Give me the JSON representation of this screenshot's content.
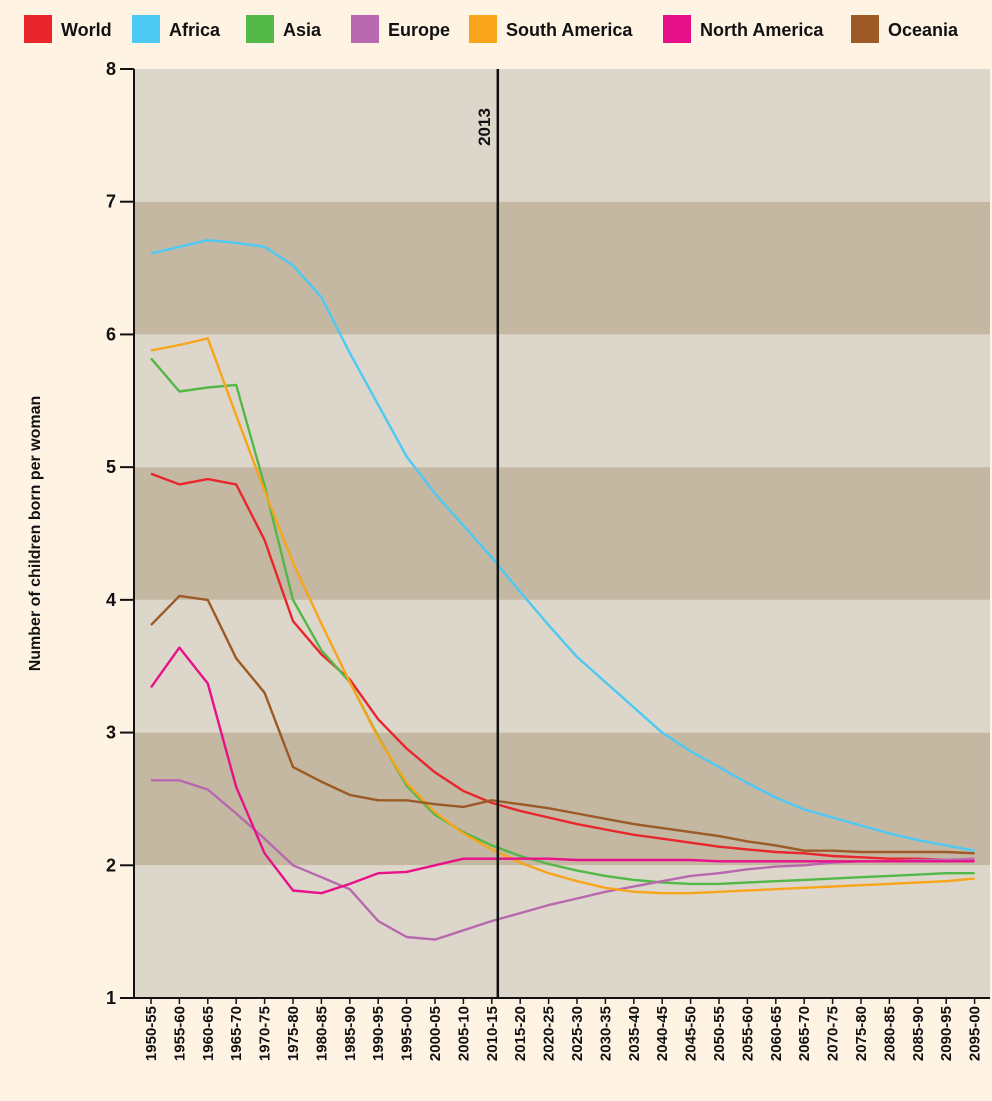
{
  "chart_data": {
    "type": "line",
    "title": "",
    "xlabel": "",
    "ylabel": "Number of children born per woman",
    "ylim": [
      1,
      8
    ],
    "yticks": [
      "1",
      "2",
      "3",
      "4",
      "5",
      "6",
      "7",
      "8"
    ],
    "grid": "alternating horizontal bands",
    "legend_position": "top",
    "categories": [
      "1950-55",
      "1955-60",
      "1960-65",
      "1965-70",
      "1970-75",
      "1975-80",
      "1980-85",
      "1985-90",
      "1990-95",
      "1995-00",
      "2000-05",
      "2005-10",
      "2010-15",
      "2015-20",
      "2020-25",
      "2025-30",
      "2030-35",
      "2035-40",
      "2040-45",
      "2045-50",
      "2050-55",
      "2055-60",
      "2060-65",
      "2065-70",
      "2070-75",
      "2075-80",
      "2080-85",
      "2085-90",
      "2090-95",
      "2095-00"
    ],
    "annotation": {
      "label": "2013",
      "at_category": "2010-15"
    },
    "series": [
      {
        "name": "World",
        "color": "#e8262b",
        "values": [
          4.95,
          4.87,
          4.91,
          4.87,
          4.45,
          3.84,
          3.59,
          3.4,
          3.1,
          2.88,
          2.7,
          2.56,
          2.47,
          2.41,
          2.36,
          2.31,
          2.27,
          2.23,
          2.2,
          2.17,
          2.14,
          2.12,
          2.1,
          2.09,
          2.07,
          2.06,
          2.05,
          2.05,
          2.04,
          2.04
        ]
      },
      {
        "name": "Africa",
        "color": "#4dc9f3",
        "values": [
          6.61,
          6.66,
          6.71,
          6.69,
          6.66,
          6.52,
          6.28,
          5.86,
          5.47,
          5.08,
          4.8,
          4.56,
          4.32,
          4.06,
          3.81,
          3.57,
          3.38,
          3.19,
          3.0,
          2.86,
          2.74,
          2.62,
          2.51,
          2.42,
          2.36,
          2.3,
          2.24,
          2.19,
          2.15,
          2.11
        ]
      },
      {
        "name": "Asia",
        "color": "#53b848",
        "values": [
          5.82,
          5.57,
          5.6,
          5.62,
          4.86,
          4.0,
          3.62,
          3.38,
          2.97,
          2.6,
          2.38,
          2.25,
          2.15,
          2.07,
          2.01,
          1.96,
          1.92,
          1.89,
          1.87,
          1.86,
          1.86,
          1.87,
          1.88,
          1.89,
          1.9,
          1.91,
          1.92,
          1.93,
          1.94,
          1.94
        ]
      },
      {
        "name": "Europe",
        "color": "#b868ae",
        "values": [
          2.64,
          2.64,
          2.57,
          2.39,
          2.2,
          2.0,
          1.91,
          1.82,
          1.58,
          1.46,
          1.44,
          1.51,
          1.58,
          1.64,
          1.7,
          1.75,
          1.8,
          1.84,
          1.88,
          1.92,
          1.94,
          1.97,
          1.99,
          2.0,
          2.02,
          2.03,
          2.03,
          2.04,
          2.04,
          2.05
        ]
      },
      {
        "name": "South America",
        "color": "#f8a51c",
        "values": [
          5.88,
          5.92,
          5.97,
          5.39,
          4.82,
          4.28,
          3.82,
          3.38,
          2.96,
          2.62,
          2.4,
          2.24,
          2.12,
          2.02,
          1.94,
          1.88,
          1.83,
          1.8,
          1.79,
          1.79,
          1.8,
          1.81,
          1.82,
          1.83,
          1.84,
          1.85,
          1.86,
          1.87,
          1.88,
          1.9
        ]
      },
      {
        "name": "North America",
        "color": "#e8118a",
        "values": [
          3.34,
          3.64,
          3.37,
          2.59,
          2.09,
          1.81,
          1.79,
          1.86,
          1.94,
          1.95,
          2.0,
          2.05,
          2.05,
          2.05,
          2.05,
          2.04,
          2.04,
          2.04,
          2.04,
          2.04,
          2.03,
          2.03,
          2.03,
          2.03,
          2.03,
          2.03,
          2.03,
          2.03,
          2.03,
          2.03
        ]
      },
      {
        "name": "Oceania",
        "color": "#9c5a26",
        "values": [
          3.81,
          4.03,
          4.0,
          3.56,
          3.3,
          2.74,
          2.63,
          2.53,
          2.49,
          2.49,
          2.46,
          2.44,
          2.49,
          2.46,
          2.43,
          2.39,
          2.35,
          2.31,
          2.28,
          2.25,
          2.22,
          2.18,
          2.15,
          2.11,
          2.11,
          2.1,
          2.1,
          2.1,
          2.1,
          2.09
        ]
      }
    ]
  }
}
